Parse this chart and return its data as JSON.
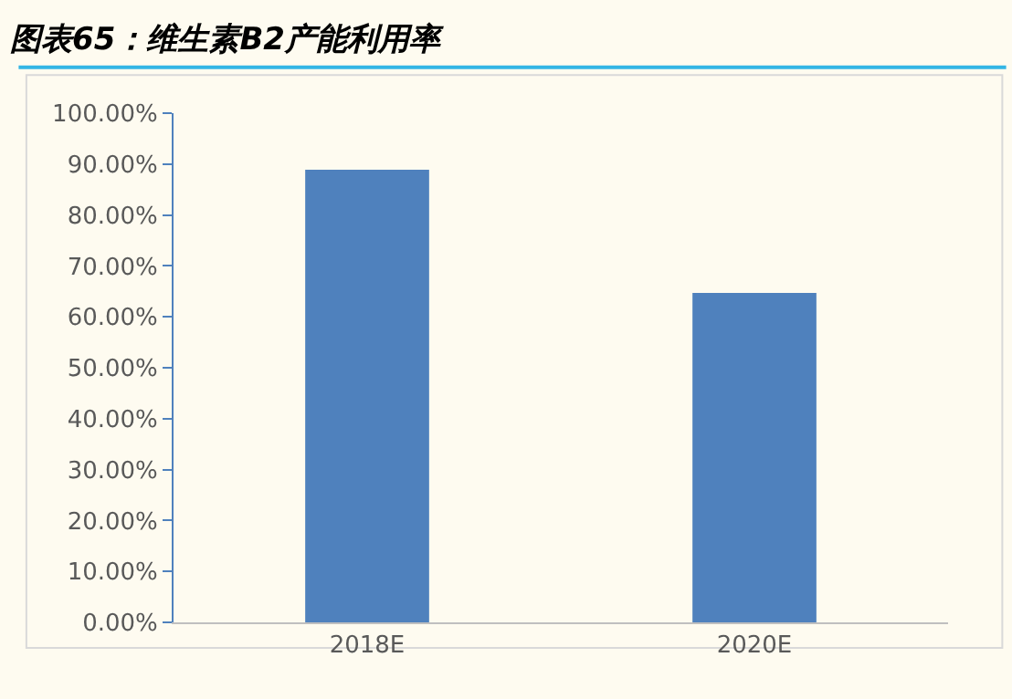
{
  "chart_data": {
    "type": "bar",
    "title": "图表65：维生素B2产能利用率",
    "categories": [
      "2018E",
      "2020E"
    ],
    "values": [
      88.9,
      64.7
    ],
    "color": "#4f81bd",
    "ylim": [
      0,
      100
    ],
    "yticks": [
      {
        "value": 0,
        "label": "0.00%"
      },
      {
        "value": 10,
        "label": "10.00%"
      },
      {
        "value": 20,
        "label": "20.00%"
      },
      {
        "value": 30,
        "label": "30.00%"
      },
      {
        "value": 40,
        "label": "40.00%"
      },
      {
        "value": 50,
        "label": "50.00%"
      },
      {
        "value": 60,
        "label": "60.00%"
      },
      {
        "value": 70,
        "label": "70.00%"
      },
      {
        "value": 80,
        "label": "80.00%"
      },
      {
        "value": 90,
        "label": "90.00%"
      },
      {
        "value": 100,
        "label": "100.00%"
      }
    ],
    "grid": false
  }
}
